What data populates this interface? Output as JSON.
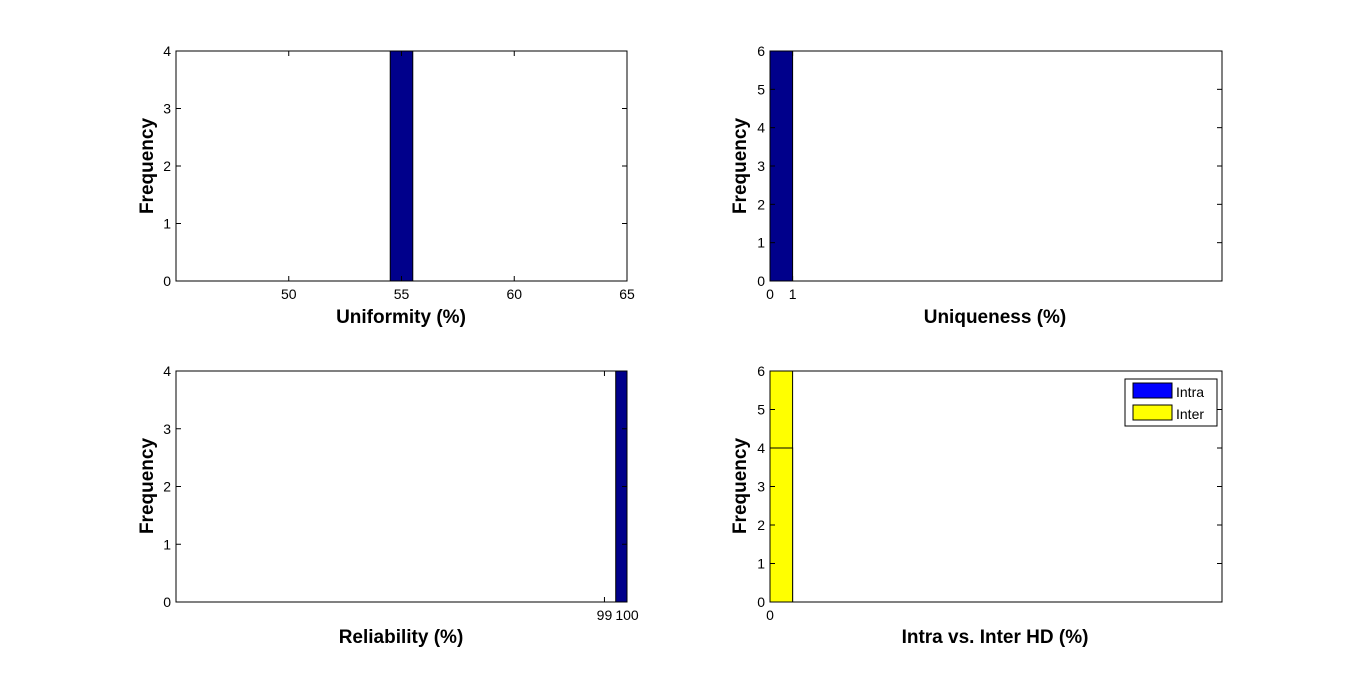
{
  "chart_data": [
    {
      "id": "uniformity",
      "type": "bar",
      "xlabel": "Uniformity (%)",
      "ylabel": "Frequency",
      "xlim": [
        45,
        65
      ],
      "ylim": [
        0,
        4
      ],
      "xticks": [
        50,
        55,
        60,
        65
      ],
      "yticks": [
        0,
        1,
        2,
        3,
        4
      ],
      "bars": [
        {
          "x0": 54.5,
          "x1": 55.5,
          "value": 4,
          "color": "#00008B"
        }
      ]
    },
    {
      "id": "uniqueness",
      "type": "bar",
      "xlabel": "Uniqueness (%)",
      "ylabel": "Frequency",
      "xlim": [
        0,
        20
      ],
      "ylim": [
        0,
        6
      ],
      "xticks": [
        0,
        1
      ],
      "yticks": [
        0,
        1,
        2,
        3,
        4,
        5,
        6
      ],
      "bars": [
        {
          "x0": 0,
          "x1": 1,
          "value": 6,
          "color": "#00008B"
        }
      ]
    },
    {
      "id": "reliability",
      "type": "bar",
      "xlabel": "Reliability (%)",
      "ylabel": "Frequency",
      "xlim": [
        80,
        100
      ],
      "ylim": [
        0,
        4
      ],
      "xticks": [
        99,
        100
      ],
      "yticks": [
        0,
        1,
        2,
        3,
        4
      ],
      "bars": [
        {
          "x0": 99.5,
          "x1": 100,
          "value": 4,
          "color": "#00008B"
        }
      ]
    },
    {
      "id": "intra-inter-hd",
      "type": "bar",
      "xlabel": "Intra vs. Inter HD (%)",
      "ylabel": "Frequency",
      "xlim": [
        0,
        20
      ],
      "ylim": [
        0,
        6
      ],
      "xticks": [
        0
      ],
      "yticks": [
        0,
        1,
        2,
        3,
        4,
        5,
        6
      ],
      "bars": [
        {
          "x0": 0,
          "x1": 1,
          "value": 4,
          "color": "#FFFF00"
        },
        {
          "x0": 0,
          "x1": 1,
          "value": 6,
          "color": "#FFFF00"
        }
      ],
      "legend": {
        "placement": "top-right",
        "entries": [
          {
            "label": "Intra",
            "color": "#0000FF"
          },
          {
            "label": "Inter",
            "color": "#FFFF00"
          }
        ]
      }
    }
  ]
}
